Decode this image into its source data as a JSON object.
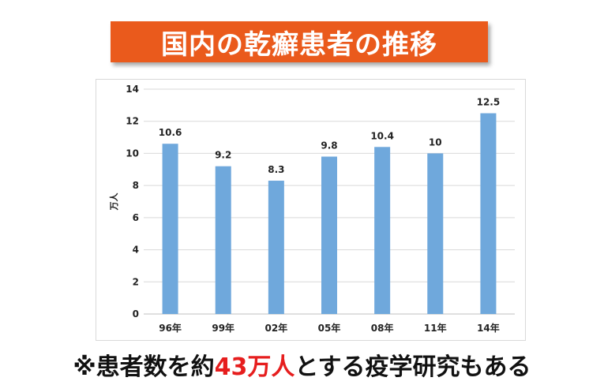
{
  "title": "国内の乾癬患者の推移",
  "chart_data": {
    "type": "bar",
    "categories": [
      "96年",
      "99年",
      "02年",
      "05年",
      "08年",
      "11年",
      "14年"
    ],
    "values": [
      10.6,
      9.2,
      8.3,
      9.8,
      10.4,
      10,
      12.5
    ],
    "data_labels": [
      "10.6",
      "9.2",
      "8.3",
      "9.8",
      "10.4",
      "10",
      "12.5"
    ],
    "ylabel": "万人",
    "ylim": [
      0,
      14
    ],
    "yticks": [
      0,
      2,
      4,
      6,
      8,
      10,
      12,
      14
    ],
    "grid": true,
    "bar_color": "#6fa8dc"
  },
  "footnote": {
    "prefix": "※患者数を約",
    "highlight": "43万人",
    "suffix": "とする疫学研究もある",
    "highlight_color": "#e61e1e"
  }
}
